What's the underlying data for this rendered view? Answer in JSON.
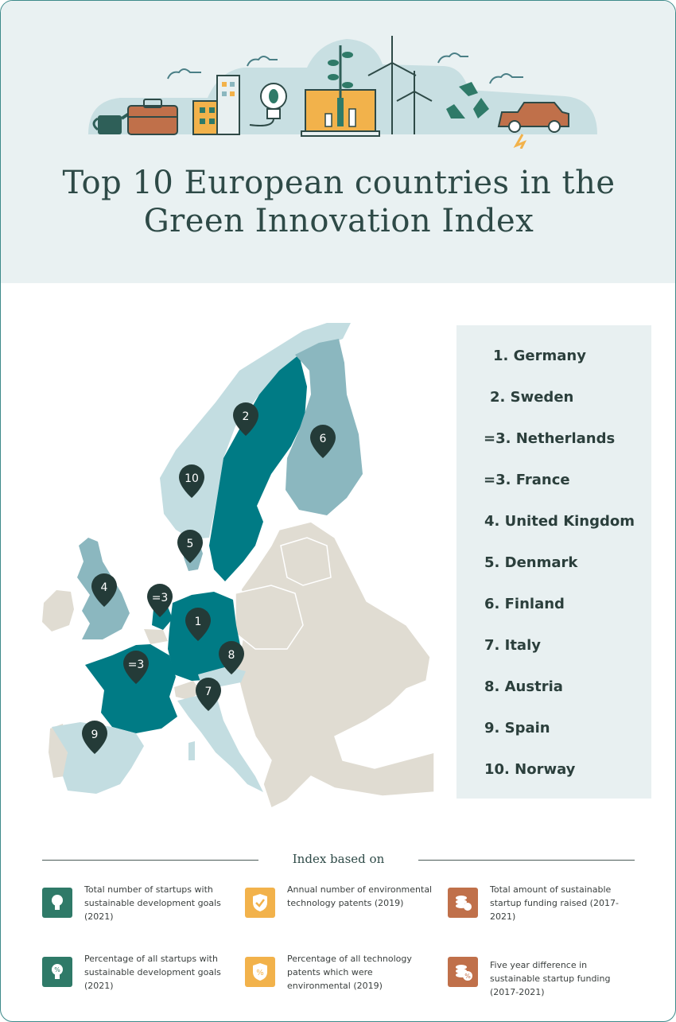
{
  "title_line1": "Top 10 European countries in the",
  "title_line2": "Green Innovation Index",
  "colors": {
    "header_bg": "#e9f1f2",
    "dark_teal": "#007b85",
    "mid_teal": "#8bb7bf",
    "light_teal": "#c3dde1",
    "grey_country": "#e0dcd2",
    "pin": "#243b38",
    "green_icon": "#2f7a68",
    "yellow_icon": "#f2b24b",
    "brown_icon": "#c0704a"
  },
  "ranking": [
    "1. Germany",
    "2. Sweden",
    "=3. Netherlands",
    "=3. France",
    "4. United Kingdom",
    "5. Denmark",
    "6. Finland",
    "7. Italy",
    "8. Austria",
    "9. Spain",
    "10. Norway"
  ],
  "map_pins": {
    "germany": "1",
    "sweden": "2",
    "netherlands": "=3",
    "france": "=3",
    "uk": "4",
    "denmark": "5",
    "finland": "6",
    "italy": "7",
    "austria": "8",
    "spain": "9",
    "norway": "10"
  },
  "legend": {
    "title": "Index based on",
    "items": [
      {
        "icon": "lightbulb-icon",
        "text": "Total number of startups with sustainable development goals (2021)"
      },
      {
        "icon": "shield-check-icon",
        "text": "Annual number of environmental technology patents (2019)"
      },
      {
        "icon": "coins-icon",
        "text": "Total amount of sustainable startup funding raised (2017-2021)"
      },
      {
        "icon": "lightbulb-percent-icon",
        "text": "Percentage of all startups with sustainable development goals (2021)"
      },
      {
        "icon": "shield-percent-icon",
        "text": "Percentage of all technology patents which were environmental (2019)"
      },
      {
        "icon": "coins-percent-icon",
        "text": "Five year difference in sustainable startup funding (2017-2021)"
      }
    ]
  }
}
